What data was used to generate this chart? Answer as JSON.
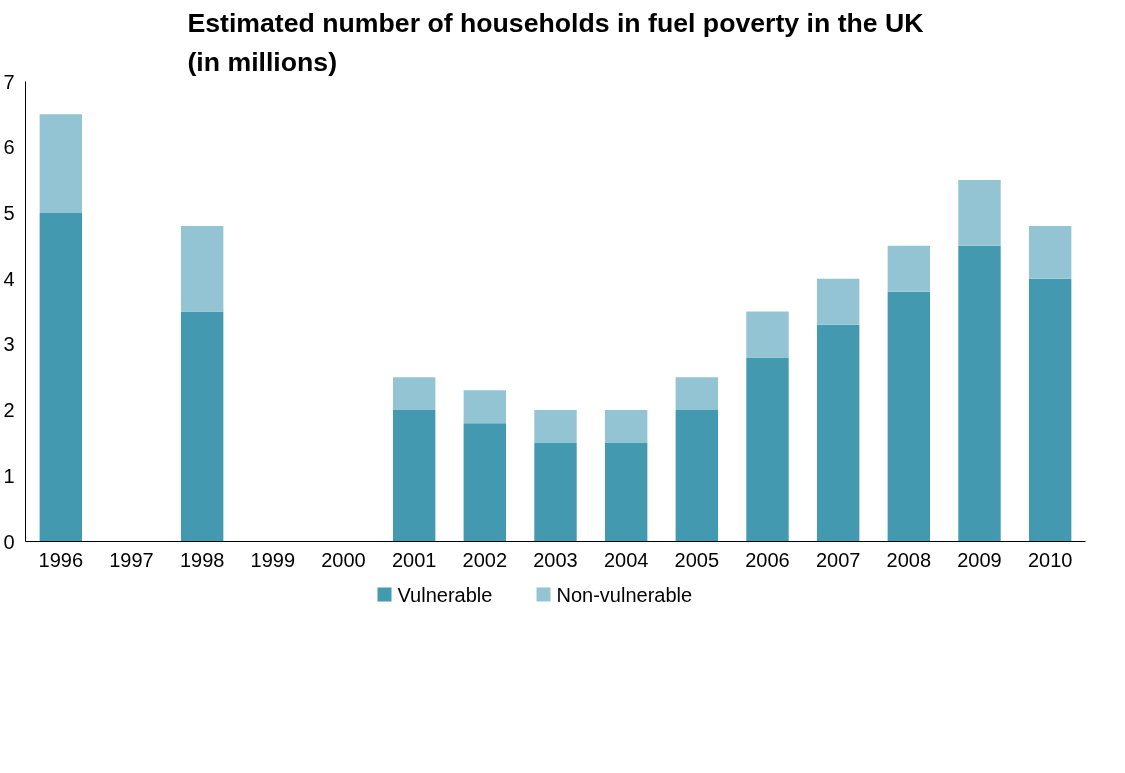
{
  "chart_data": {
    "type": "bar",
    "title": "Estimated number of households in fuel poverty in the UK\n(in millions)",
    "categories": [
      "1996",
      "1997",
      "1998",
      "1999",
      "2000",
      "2001",
      "2002",
      "2003",
      "2004",
      "2005",
      "2006",
      "2007",
      "2008",
      "2009",
      "2010"
    ],
    "stacked": true,
    "series": [
      {
        "name": "Vulnerable",
        "color": "#4399b0",
        "values": [
          5.0,
          null,
          3.5,
          null,
          null,
          2.0,
          1.8,
          1.5,
          1.5,
          2.0,
          2.8,
          3.3,
          3.8,
          4.5,
          4.0
        ]
      },
      {
        "name": "Non-vulnerable",
        "color": "#93c4d4",
        "values": [
          1.5,
          null,
          1.3,
          null,
          null,
          0.5,
          0.5,
          0.5,
          0.5,
          0.5,
          0.7,
          0.7,
          0.7,
          1.0,
          0.8
        ]
      }
    ],
    "ylim": [
      0,
      7
    ],
    "yticks": [
      0,
      1,
      2,
      3,
      4,
      5,
      6,
      7
    ],
    "grid": false,
    "legend": "bottom"
  }
}
